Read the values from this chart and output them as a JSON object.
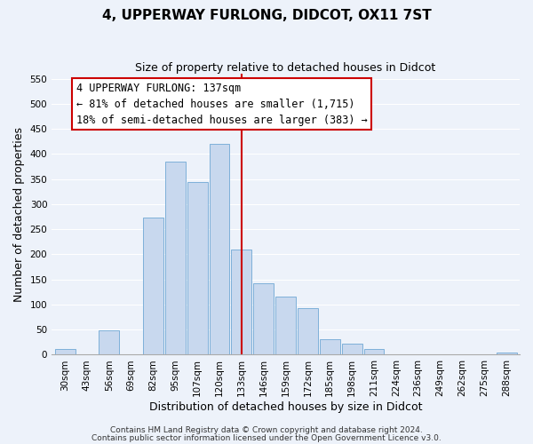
{
  "title": "4, UPPERWAY FURLONG, DIDCOT, OX11 7ST",
  "subtitle": "Size of property relative to detached houses in Didcot",
  "xlabel": "Distribution of detached houses by size in Didcot",
  "ylabel": "Number of detached properties",
  "bar_labels": [
    "30sqm",
    "43sqm",
    "56sqm",
    "69sqm",
    "82sqm",
    "95sqm",
    "107sqm",
    "120sqm",
    "133sqm",
    "146sqm",
    "159sqm",
    "172sqm",
    "185sqm",
    "198sqm",
    "211sqm",
    "224sqm",
    "236sqm",
    "249sqm",
    "262sqm",
    "275sqm",
    "288sqm"
  ],
  "bar_heights": [
    12,
    0,
    48,
    0,
    273,
    385,
    344,
    420,
    210,
    143,
    115,
    92,
    31,
    22,
    12,
    0,
    0,
    0,
    0,
    0,
    4
  ],
  "bar_color": "#c8d8ee",
  "bar_edge_color": "#6fa8d4",
  "vline_color": "#cc0000",
  "vline_x": 8.0,
  "ylim": [
    0,
    560
  ],
  "yticks": [
    0,
    50,
    100,
    150,
    200,
    250,
    300,
    350,
    400,
    450,
    500,
    550
  ],
  "annotation_title": "4 UPPERWAY FURLONG: 137sqm",
  "annotation_line1": "← 81% of detached houses are smaller (1,715)",
  "annotation_line2": "18% of semi-detached houses are larger (383) →",
  "annotation_box_color": "#ffffff",
  "annotation_box_edge": "#cc0000",
  "footnote1": "Contains HM Land Registry data © Crown copyright and database right 2024.",
  "footnote2": "Contains public sector information licensed under the Open Government Licence v3.0.",
  "bg_color": "#edf2fa",
  "grid_color": "#ffffff",
  "title_fontsize": 11,
  "subtitle_fontsize": 9,
  "axis_label_fontsize": 9,
  "tick_fontsize": 7.5,
  "annotation_fontsize": 8.5,
  "footnote_fontsize": 6.5
}
